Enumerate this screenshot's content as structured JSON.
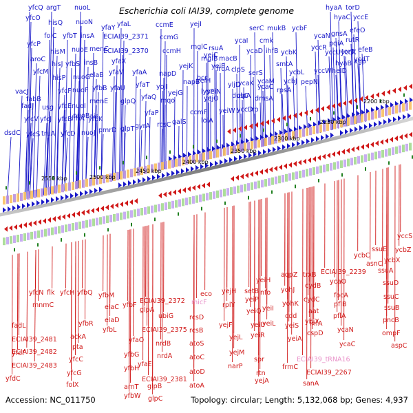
{
  "title": "Escherichia coli IAI39, complete genome",
  "footer": {
    "accession": "Accession: NC_011750",
    "topology": "Topology: circular; Length: 5,132,068 bp; Genes: 4,937"
  },
  "colors": {
    "forward_strand": "#1818c8",
    "reverse_strand": "#d01818",
    "trna_label": "#e890c8",
    "backbone": "#909090",
    "tick": "#208020"
  },
  "kbp_labels": [
    "2200 kbp",
    "2250 kbp",
    "2300 kbp",
    "2350 kbp",
    "2400 kbp",
    "2450 kbp",
    "2500 kbp",
    "2550 kbp"
  ],
  "top_genes": [
    {
      "label": "yfcQ"
    },
    {
      "label": "argT"
    },
    {
      "label": "nuoL"
    },
    {
      "label": "yfcO"
    },
    {
      "label": "hisQ"
    },
    {
      "label": "nuoN"
    },
    {
      "label": "yfaY"
    },
    {
      "label": "yfaL"
    },
    {
      "label": "ECIAI39_2371"
    },
    {
      "label": "ccmE"
    },
    {
      "label": "yejI"
    },
    {
      "label": "yfcP"
    },
    {
      "label": "folC"
    },
    {
      "label": "yfbT"
    },
    {
      "label": "insA"
    },
    {
      "label": "ccmG"
    },
    {
      "label": "aroC"
    },
    {
      "label": "hisM"
    },
    {
      "label": "nuoE"
    },
    {
      "label": "menC"
    },
    {
      "label": "ECIAI39_2370"
    },
    {
      "label": "ccmH"
    },
    {
      "label": "hisJ"
    },
    {
      "label": "yfbS"
    },
    {
      "label": "insB"
    },
    {
      "label": "yfaX"
    },
    {
      "label": "yfcM"
    },
    {
      "label": "hisP"
    },
    {
      "label": "nuoG"
    },
    {
      "label": "elaB"
    },
    {
      "label": "yfaV"
    },
    {
      "label": "yfaA"
    },
    {
      "label": "napD"
    },
    {
      "label": "vacJ"
    },
    {
      "label": "yfcF"
    },
    {
      "label": "nuoF"
    },
    {
      "label": "yfbB"
    },
    {
      "label": "yfaU"
    },
    {
      "label": "yfaT"
    },
    {
      "label": "yojI"
    },
    {
      "label": "fabB"
    },
    {
      "label": "usg"
    },
    {
      "label": "yfcE"
    },
    {
      "label": "nuoI"
    },
    {
      "label": "menE"
    },
    {
      "label": "glpQ"
    },
    {
      "label": "yfaQ"
    },
    {
      "label": "mqo"
    },
    {
      "label": "fadJ"
    },
    {
      "label": "nuoB"
    },
    {
      "label": "ais"
    },
    {
      "label": "yfaP"
    },
    {
      "label": "yfcV"
    },
    {
      "label": "yfcJ"
    },
    {
      "label": "yfcB"
    },
    {
      "label": "lrhA"
    },
    {
      "label": "yfbK"
    },
    {
      "label": "glpT"
    },
    {
      "label": "gyrA"
    },
    {
      "label": "rcsC"
    },
    {
      "label": "yfcS"
    },
    {
      "label": "truA"
    },
    {
      "label": "yfcD"
    },
    {
      "label": "nuoJ"
    },
    {
      "label": "pmrD"
    },
    {
      "label": "dsdC"
    },
    {
      "label": "yejK"
    },
    {
      "label": "napB"
    },
    {
      "label": "yejG"
    },
    {
      "label": "ccmF"
    },
    {
      "label": "galS"
    },
    {
      "label": "yeiC"
    },
    {
      "label": "mglC"
    },
    {
      "label": "rsuA"
    },
    {
      "label": "bcr"
    },
    {
      "label": "yejO"
    },
    {
      "label": "yeiE"
    },
    {
      "label": "mglB"
    },
    {
      "label": "fruA"
    },
    {
      "label": "yeiH"
    },
    {
      "label": "yeiN"
    },
    {
      "label": "lysP"
    },
    {
      "label": "yeiW"
    },
    {
      "label": "lolA"
    },
    {
      "label": "serC"
    },
    {
      "label": "mukB"
    },
    {
      "label": "ycbF"
    },
    {
      "label": "ycaI"
    },
    {
      "label": "cmk"
    },
    {
      "label": "ycbK"
    },
    {
      "label": "macB"
    },
    {
      "label": "ycaD"
    },
    {
      "label": "ihfB"
    },
    {
      "label": "ycaN"
    },
    {
      "label": "clpS"
    },
    {
      "label": "serS"
    },
    {
      "label": "smtA"
    },
    {
      "label": "yccR"
    },
    {
      "label": "ycaK"
    },
    {
      "label": "ycaC"
    },
    {
      "label": "ycbL"
    },
    {
      "label": "yljD"
    },
    {
      "label": "clpA"
    },
    {
      "label": "dmsA"
    },
    {
      "label": "ycbJ"
    },
    {
      "label": "dusC"
    },
    {
      "label": "ycaM"
    },
    {
      "label": "rpsA"
    },
    {
      "label": "pepN"
    },
    {
      "label": "yccD"
    },
    {
      "label": "lrp"
    },
    {
      "label": "hyaA"
    },
    {
      "label": "torD"
    },
    {
      "label": "hyaC"
    },
    {
      "label": "yccE"
    },
    {
      "label": "gnsA"
    },
    {
      "label": "efeO"
    },
    {
      "label": "pqiA"
    },
    {
      "label": "rutR"
    },
    {
      "label": "yccU"
    },
    {
      "label": "yccX"
    },
    {
      "label": "torT"
    },
    {
      "label": "efeB"
    },
    {
      "label": "yccW"
    },
    {
      "label": "hyaB"
    },
    {
      "label": "agp"
    },
    {
      "label": "heID"
    },
    {
      "label": "ycdT"
    }
  ],
  "bottom_genes": [
    {
      "label": "yfdF"
    },
    {
      "label": "fadL"
    },
    {
      "label": "ECIAI39_2481"
    },
    {
      "label": "ECIAI39_2482"
    },
    {
      "label": "ECIAI39_2483"
    },
    {
      "label": "yfdC"
    },
    {
      "label": "yfcN"
    },
    {
      "label": "mnmC"
    },
    {
      "label": "flk"
    },
    {
      "label": "yfcH"
    },
    {
      "label": "yfbQ"
    },
    {
      "label": "yfbR"
    },
    {
      "label": "ackA"
    },
    {
      "label": "pta"
    },
    {
      "label": "yfcC"
    },
    {
      "label": "yfcG"
    },
    {
      "label": "folX"
    },
    {
      "label": "yfbM"
    },
    {
      "label": "elaC"
    },
    {
      "label": "elaD"
    },
    {
      "label": "yfbL"
    },
    {
      "label": "yfbF"
    },
    {
      "label": "glpA"
    },
    {
      "label": "yfaO"
    },
    {
      "label": "yfbG"
    },
    {
      "label": "yfaE"
    },
    {
      "label": "yfbH"
    },
    {
      "label": "arnT"
    },
    {
      "label": "yfbW"
    },
    {
      "label": "ECIAI39_2372"
    },
    {
      "label": "ubiG"
    },
    {
      "label": "ECIAI39_2375"
    },
    {
      "label": "nrdA"
    },
    {
      "label": "nrdB"
    },
    {
      "label": "ECIAI39_2381"
    },
    {
      "label": "glpB"
    },
    {
      "label": "glpC"
    },
    {
      "label": "micF"
    },
    {
      "label": "rcsD"
    },
    {
      "label": "rcsB"
    },
    {
      "label": "atoS"
    },
    {
      "label": "atoC"
    },
    {
      "label": "atoD"
    },
    {
      "label": "atoA"
    },
    {
      "label": "eco"
    },
    {
      "label": "yejH"
    },
    {
      "label": "rplY"
    },
    {
      "label": "yejF"
    },
    {
      "label": "yejL"
    },
    {
      "label": "yejM"
    },
    {
      "label": "narP"
    },
    {
      "label": "setB"
    },
    {
      "label": "yeiP"
    },
    {
      "label": "yeiQ"
    },
    {
      "label": "yeiU"
    },
    {
      "label": "yeiR"
    },
    {
      "label": "spr"
    },
    {
      "label": "rtn"
    },
    {
      "label": "yejA"
    },
    {
      "label": "yeiH"
    },
    {
      "label": "nfo"
    },
    {
      "label": "yeiI"
    },
    {
      "label": "yeiL"
    },
    {
      "label": "aqpZ"
    },
    {
      "label": "yohJ"
    },
    {
      "label": "yohK"
    },
    {
      "label": "cdd"
    },
    {
      "label": "yeiS"
    },
    {
      "label": "yeiA"
    },
    {
      "label": "frmC"
    },
    {
      "label": "trxB"
    },
    {
      "label": "cydB"
    },
    {
      "label": "cydC"
    },
    {
      "label": "aat"
    },
    {
      "label": "ybjX"
    },
    {
      "label": "infA"
    },
    {
      "label": "cspD"
    },
    {
      "label": "ECIAI39_tRNA16"
    },
    {
      "label": "ECIAI39_2267"
    },
    {
      "label": "sanA"
    },
    {
      "label": "ECIAI39_2239"
    },
    {
      "label": "ycaO"
    },
    {
      "label": "focA"
    },
    {
      "label": "pflB"
    },
    {
      "label": "pflA"
    },
    {
      "label": "ycaN"
    },
    {
      "label": "ycaC"
    },
    {
      "label": "ycbC"
    },
    {
      "label": "asnC"
    },
    {
      "label": "ssuE"
    },
    {
      "label": "ycbX"
    },
    {
      "label": "ssuA"
    },
    {
      "label": "ssuD"
    },
    {
      "label": "ssuC"
    },
    {
      "label": "ssuB"
    },
    {
      "label": "pncB"
    },
    {
      "label": "ompF"
    },
    {
      "label": "aspC"
    },
    {
      "label": "yccS"
    },
    {
      "label": "ycbZ"
    }
  ]
}
